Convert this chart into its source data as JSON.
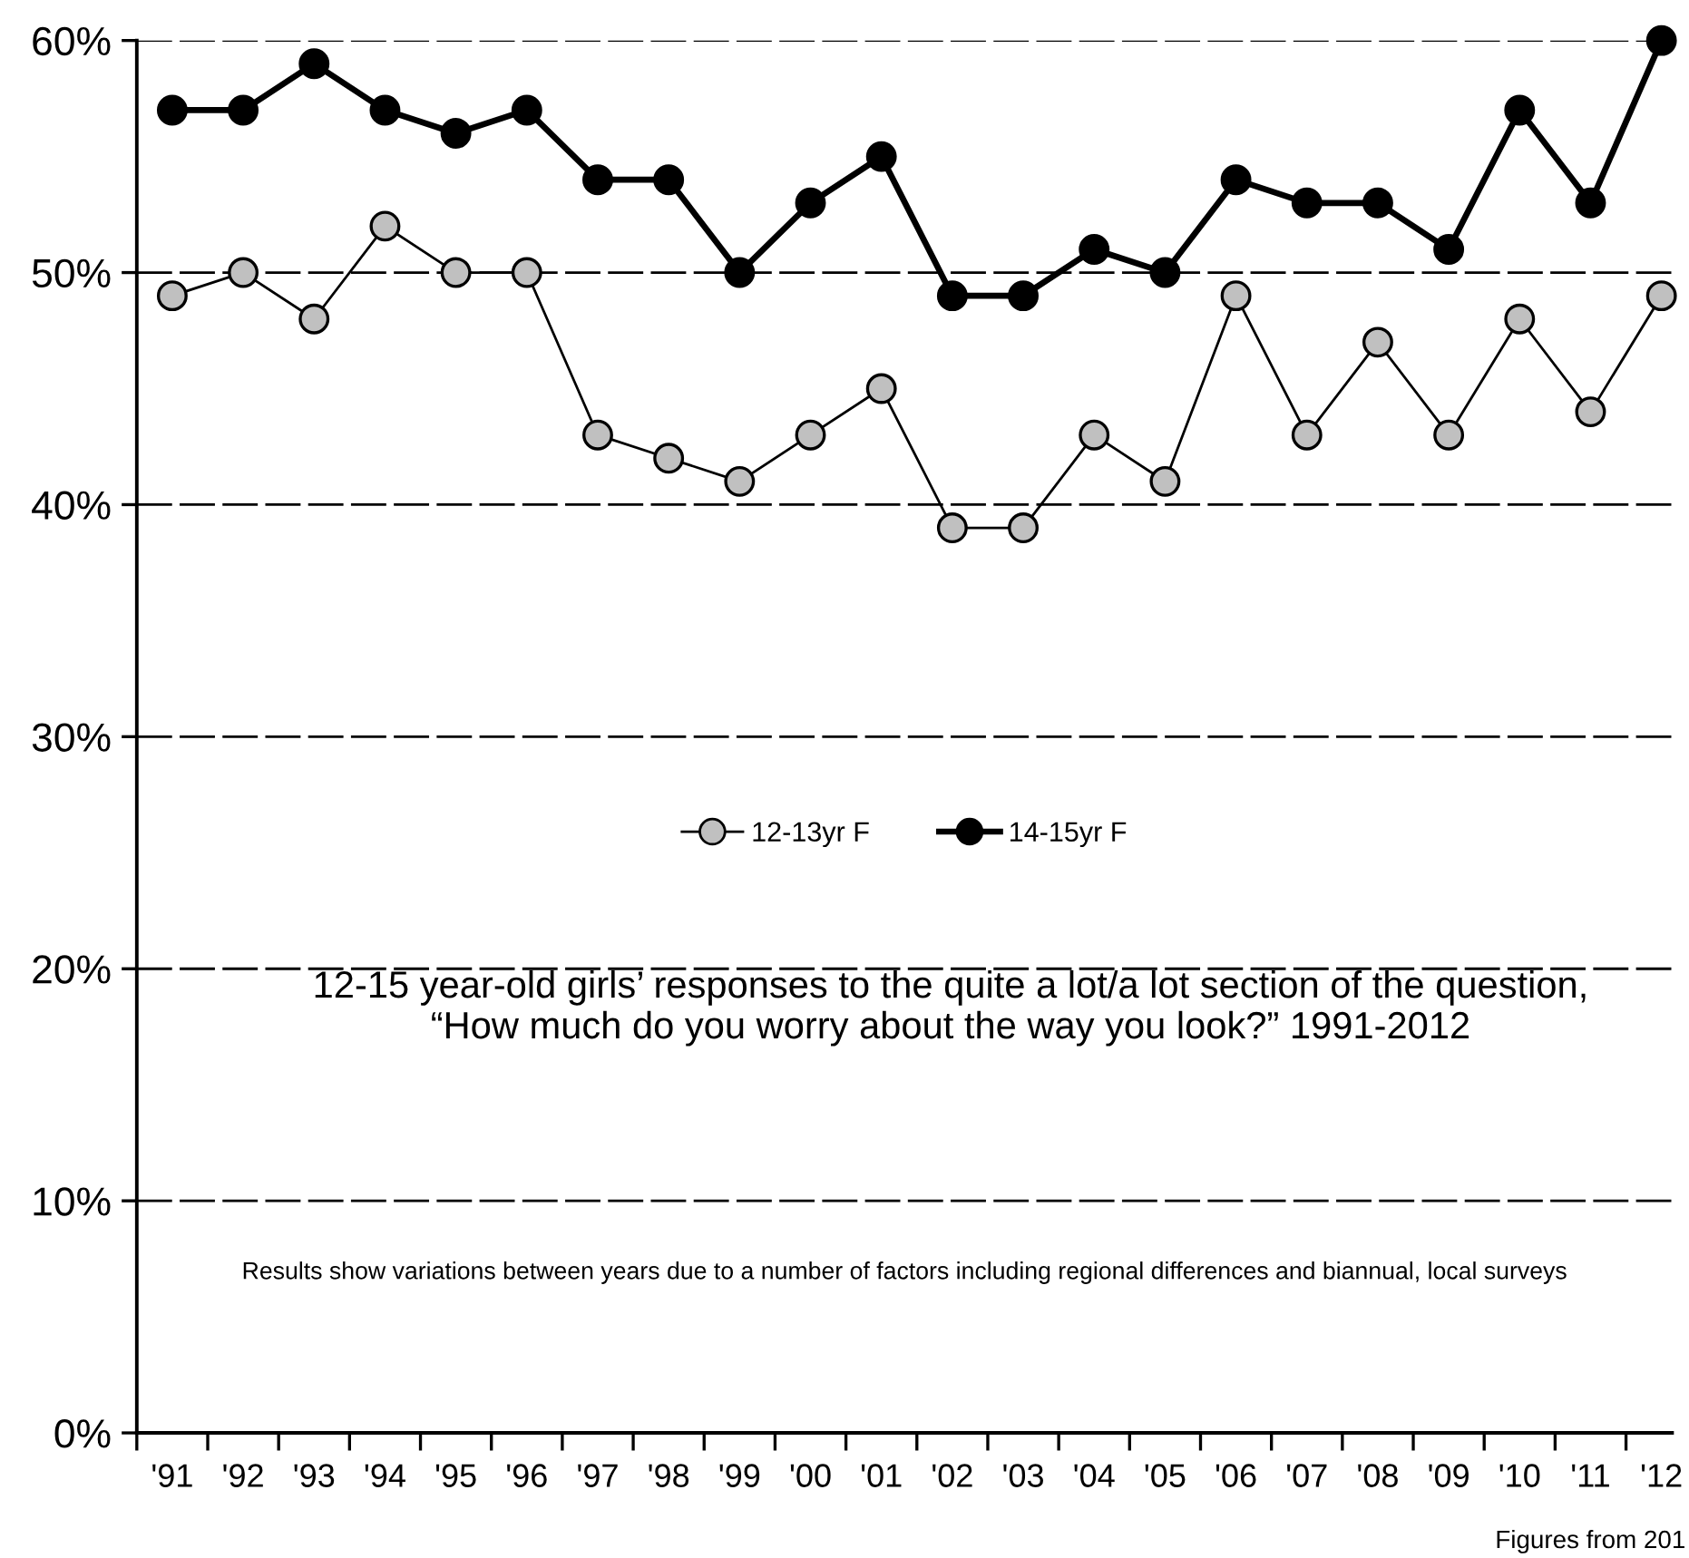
{
  "chart_data": {
    "type": "line",
    "categories": [
      "'91",
      "'92",
      "'93",
      "'94",
      "'95",
      "'96",
      "'97",
      "'98",
      "'99",
      "'00",
      "'01",
      "'02",
      "'03",
      "'04",
      "'05",
      "'06",
      "'07",
      "'08",
      "'09",
      "'10",
      "'11",
      "'12"
    ],
    "series": [
      {
        "name": "12-13yr F",
        "color": "#c0c0c0",
        "values": [
          49,
          50,
          48,
          52,
          50,
          50,
          43,
          42,
          41,
          43,
          45,
          39,
          39,
          43,
          41,
          49,
          43,
          47,
          43,
          48,
          44,
          49
        ]
      },
      {
        "name": "14-15yr F",
        "color": "#000000",
        "values": [
          57,
          57,
          59,
          57,
          56,
          57,
          54,
          54,
          50,
          53,
          55,
          49,
          49,
          51,
          50,
          54,
          53,
          53,
          51,
          57,
          53,
          60
        ]
      }
    ],
    "ylim": [
      0,
      60
    ],
    "yticks": [
      {
        "value": 0,
        "label": "0%"
      },
      {
        "value": 10,
        "label": "10%"
      },
      {
        "value": 20,
        "label": "20%"
      },
      {
        "value": 30,
        "label": "30%"
      },
      {
        "value": 40,
        "label": "40%"
      },
      {
        "value": 50,
        "label": "50%"
      },
      {
        "value": 60,
        "label": "60%"
      }
    ],
    "grid": "y",
    "legend": "center",
    "marker": "circle",
    "line_style": "solid",
    "annotations": [
      "12-15 year-old girls’ responses to the quite a lot/a lot section of the question,\n“How much do you worry about the way you look?” 1991-2012",
      "Results show variations between years due to a number of factors including regional differences and biannual, local surveys",
      "Figures from 201"
    ]
  }
}
